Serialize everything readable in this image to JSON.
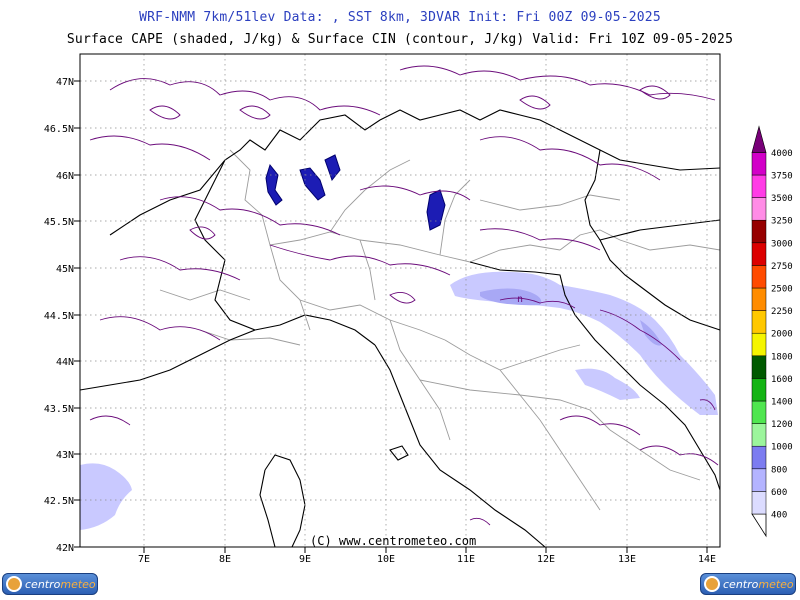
{
  "header": {
    "line1": "WRF-NMM 7km/51lev  Data: , SST 8km, 3DVAR  Init: Fri 00Z 09-05-2025",
    "line2": "Surface CAPE (shaded, J/kg) & Surface CIN (contour, J/kg)  Valid: Fri 10Z 09-05-2025"
  },
  "map": {
    "lon_ticks": [
      "7E",
      "8E",
      "9E",
      "10E",
      "11E",
      "12E",
      "13E",
      "14E"
    ],
    "lat_ticks": [
      "47N",
      "46.5N",
      "46N",
      "45.5N",
      "45N",
      "44.5N",
      "44N",
      "43.5N",
      "43N",
      "42.5N",
      "42N"
    ],
    "lon_range": [
      6.3,
      14.2
    ],
    "lat_range": [
      42.0,
      47.25
    ],
    "contour_label": "n"
  },
  "legend": {
    "levels": [
      "400",
      "600",
      "800",
      "1000",
      "1200",
      "1400",
      "1600",
      "1800",
      "2000",
      "2250",
      "2500",
      "2750",
      "3000",
      "3250",
      "3500",
      "3750",
      "4000"
    ],
    "colors": [
      "#dcdcff",
      "#b4b4ff",
      "#7c7cf0",
      "#9cf59c",
      "#50e650",
      "#14b414",
      "#005a00",
      "#f5f500",
      "#ffc800",
      "#ff8c00",
      "#ff4b00",
      "#dc0000",
      "#960000",
      "#ff8ce6",
      "#ff3ce6",
      "#d200c8",
      "#780078"
    ]
  },
  "footer": {
    "copyright": "(C) www.centrometeo.com",
    "logo_left": {
      "a": "centro",
      "b": "meteo"
    },
    "logo_right": {
      "a": "centro",
      "b": "meteo"
    }
  }
}
